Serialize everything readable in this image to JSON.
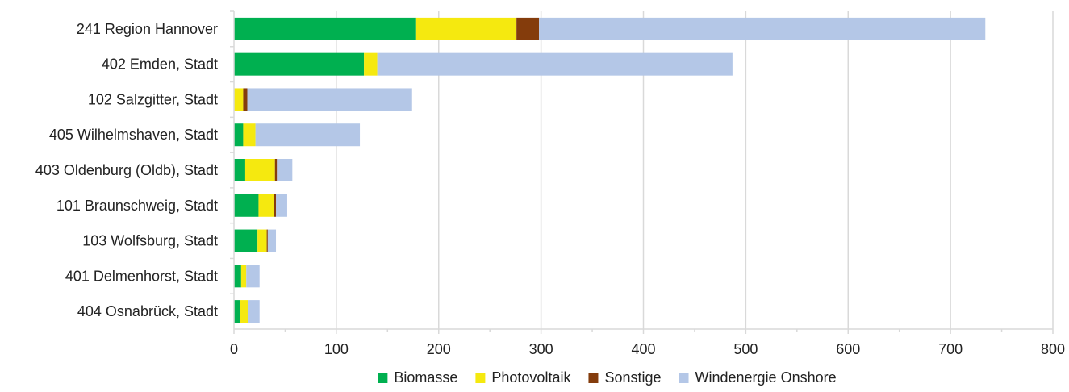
{
  "chart_data": {
    "type": "bar",
    "orientation": "horizontal",
    "stacked": true,
    "categories": [
      "241 Region Hannover",
      "402 Emden, Stadt",
      "102 Salzgitter, Stadt",
      "405 Wilhelmshaven, Stadt",
      "403 Oldenburg (Oldb), Stadt",
      "101 Braunschweig, Stadt",
      "103 Wolfsburg, Stadt",
      "401 Delmenhorst, Stadt",
      "404 Osnabrück, Stadt"
    ],
    "series": [
      {
        "name": "Biomasse",
        "color": "#00b050",
        "values": [
          178,
          127,
          0,
          9,
          11,
          24,
          23,
          7,
          6
        ]
      },
      {
        "name": "Photovoltaik",
        "color": "#f5e90f",
        "values": [
          98,
          13,
          9,
          12,
          29,
          15,
          9,
          5,
          8
        ]
      },
      {
        "name": "Sonstige",
        "color": "#843c0c",
        "values": [
          22,
          0,
          4,
          0,
          2,
          2,
          1,
          0,
          0
        ]
      },
      {
        "name": "Windenergie Onshore",
        "color": "#b4c7e7",
        "values": [
          436,
          347,
          161,
          102,
          15,
          11,
          8,
          13,
          11
        ]
      }
    ],
    "xlim": [
      0,
      800
    ],
    "xticks": [
      "0",
      "100",
      "200",
      "300",
      "400",
      "500",
      "600",
      "700",
      "800"
    ],
    "grid": true,
    "legend_position": "bottom",
    "title": "",
    "xlabel": "",
    "ylabel": ""
  }
}
